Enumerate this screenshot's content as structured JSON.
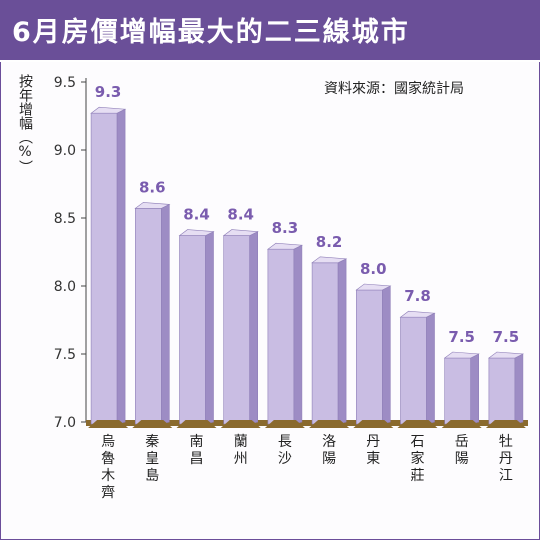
{
  "title": "6月房價增幅最大的二三線城市",
  "source": "資料來源：國家統計局",
  "colors": {
    "title_bg": "#6a4f98",
    "bar_front": "#c9bde3",
    "bar_side": "#9d8cc4",
    "bar_top": "#e6def3",
    "base": "#8a6a2e",
    "value_label": "#7a5cae"
  },
  "chart_data": {
    "type": "bar",
    "title": "6月房價增幅最大的二三線城市",
    "ylabel": "按年增幅（%）",
    "xlabel": "",
    "ylim": [
      7.0,
      9.5
    ],
    "yticks": [
      "7.0",
      "7.5",
      "8.0",
      "8.5",
      "9.0",
      "9.5"
    ],
    "grid": false,
    "categories": [
      "烏魯木齊",
      "秦皇島",
      "南昌",
      "蘭州",
      "長沙",
      "洛陽",
      "丹東",
      "石家莊",
      "岳陽",
      "牡丹江"
    ],
    "values": [
      9.3,
      8.6,
      8.4,
      8.4,
      8.3,
      8.2,
      8.0,
      7.8,
      7.5,
      7.5
    ],
    "value_labels": [
      "9.3",
      "8.6",
      "8.4",
      "8.4",
      "8.3",
      "8.2",
      "8.0",
      "7.8",
      "7.5",
      "7.5"
    ]
  }
}
